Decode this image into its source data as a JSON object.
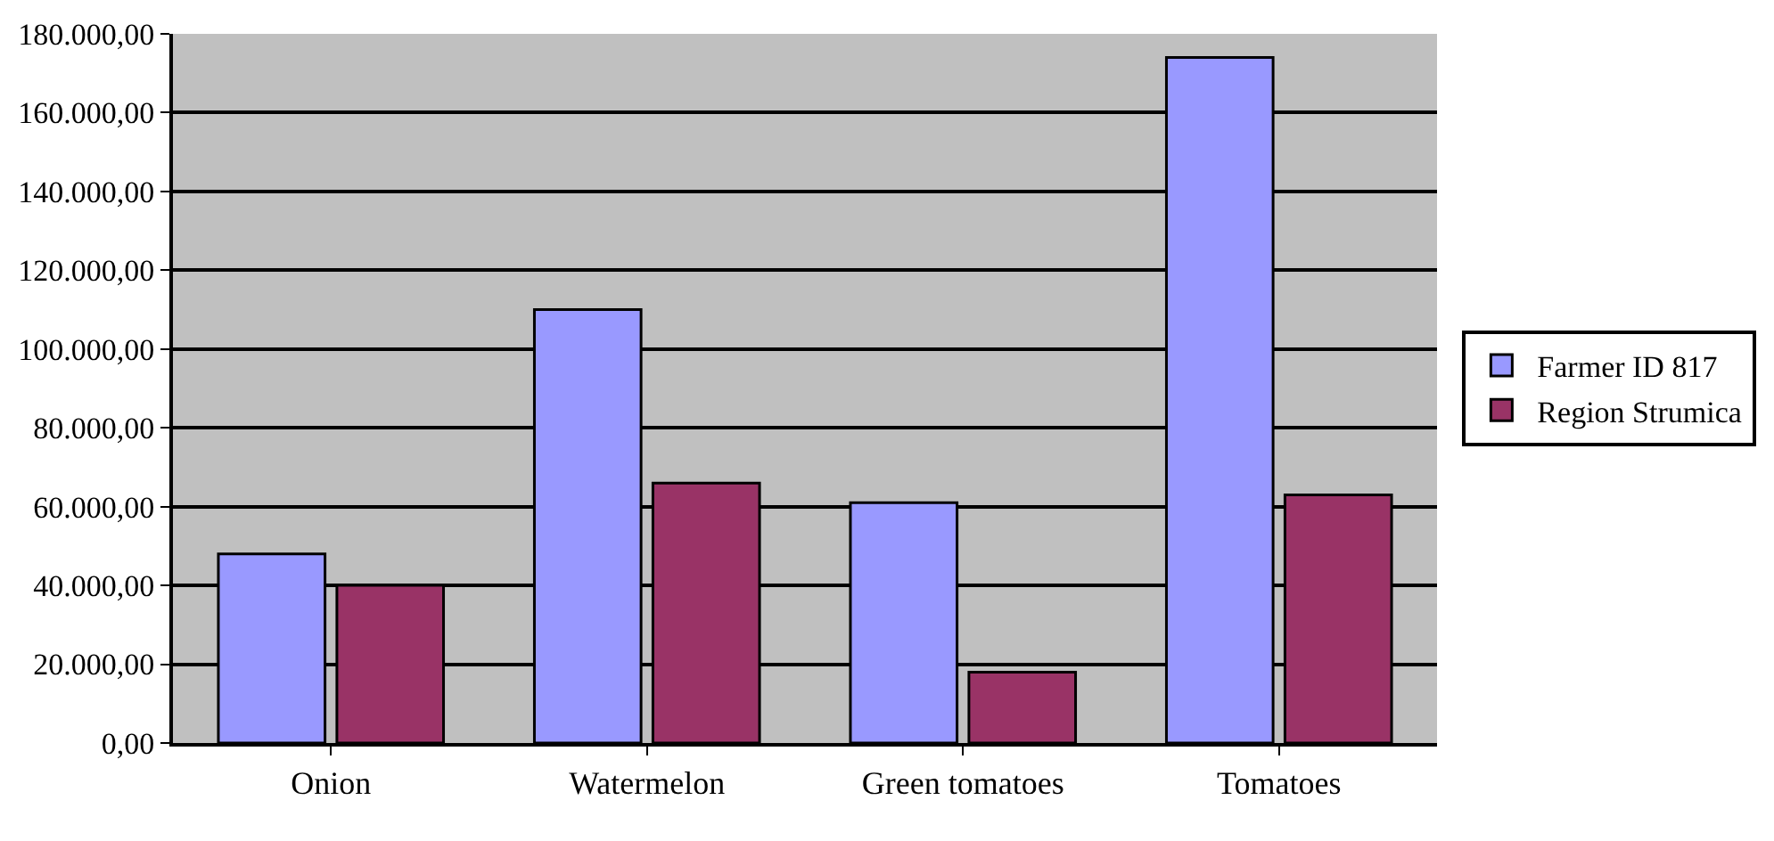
{
  "chart_data": {
    "type": "bar",
    "categories": [
      "Onion",
      "Watermelon",
      "Green tomatoes",
      "Tomatoes"
    ],
    "series": [
      {
        "name": "Farmer ID 817",
        "color": "#9999ff",
        "values": [
          48000,
          110000,
          61000,
          174000
        ]
      },
      {
        "name": "Region Strumica",
        "color": "#993366",
        "values": [
          40000,
          66000,
          18000,
          63000
        ]
      }
    ],
    "ylim": [
      0,
      180000
    ],
    "yticks": [
      {
        "value": 0,
        "label": "0,00"
      },
      {
        "value": 20000,
        "label": "20.000,00"
      },
      {
        "value": 40000,
        "label": "40.000,00"
      },
      {
        "value": 60000,
        "label": "60.000,00"
      },
      {
        "value": 80000,
        "label": "80.000,00"
      },
      {
        "value": 100000,
        "label": "100.000,00"
      },
      {
        "value": 120000,
        "label": "120.000,00"
      },
      {
        "value": 140000,
        "label": "140.000,00"
      },
      {
        "value": 160000,
        "label": "160.000,00"
      },
      {
        "value": 180000,
        "label": "180.000,00"
      }
    ],
    "grid": "y",
    "legend": "right"
  }
}
